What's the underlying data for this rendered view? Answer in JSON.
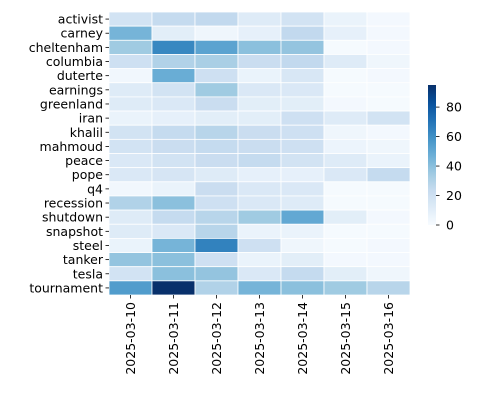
{
  "chart_data": {
    "type": "heatmap",
    "title": "",
    "xlabel": "",
    "ylabel": "",
    "x": [
      "2025-03-10",
      "2025-03-11",
      "2025-03-12",
      "2025-03-13",
      "2025-03-14",
      "2025-03-15",
      "2025-03-16"
    ],
    "y": [
      "activist",
      "carney",
      "cheltenham",
      "columbia",
      "duterte",
      "earnings",
      "greenland",
      "iran",
      "khalil",
      "mahmoud",
      "peace",
      "pope",
      "q4",
      "recession",
      "shutdown",
      "snapshot",
      "steel",
      "tanker",
      "tesla",
      "tournament"
    ],
    "values": [
      [
        18,
        24,
        25,
        12,
        18,
        6,
        2
      ],
      [
        45,
        10,
        4,
        8,
        25,
        8,
        2
      ],
      [
        35,
        63,
        52,
        40,
        38,
        1,
        2
      ],
      [
        20,
        30,
        32,
        22,
        25,
        12,
        4
      ],
      [
        3,
        48,
        20,
        6,
        15,
        1,
        2
      ],
      [
        12,
        18,
        35,
        14,
        14,
        1,
        1
      ],
      [
        12,
        14,
        22,
        10,
        10,
        2,
        1
      ],
      [
        6,
        8,
        10,
        10,
        20,
        12,
        18
      ],
      [
        18,
        24,
        28,
        22,
        20,
        4,
        2
      ],
      [
        18,
        22,
        24,
        22,
        20,
        5,
        4
      ],
      [
        14,
        18,
        22,
        24,
        18,
        12,
        6
      ],
      [
        14,
        16,
        12,
        8,
        8,
        14,
        24
      ],
      [
        3,
        6,
        22,
        14,
        14,
        1,
        1
      ],
      [
        30,
        40,
        20,
        14,
        12,
        1,
        1
      ],
      [
        12,
        24,
        28,
        35,
        50,
        10,
        2
      ],
      [
        12,
        14,
        28,
        6,
        6,
        1,
        1
      ],
      [
        6,
        45,
        65,
        20,
        4,
        1,
        2
      ],
      [
        38,
        40,
        20,
        6,
        10,
        2,
        2
      ],
      [
        18,
        40,
        38,
        14,
        24,
        10,
        4
      ],
      [
        55,
        95,
        30,
        45,
        40,
        35,
        28
      ]
    ],
    "vmin": 0,
    "vmax": 95,
    "colormap": "Blues",
    "grid_lines": "white",
    "colorbar": {
      "ticks": [
        0,
        20,
        40,
        60,
        80
      ],
      "tick_labels": [
        "0",
        "20",
        "40",
        "60",
        "80"
      ]
    }
  }
}
